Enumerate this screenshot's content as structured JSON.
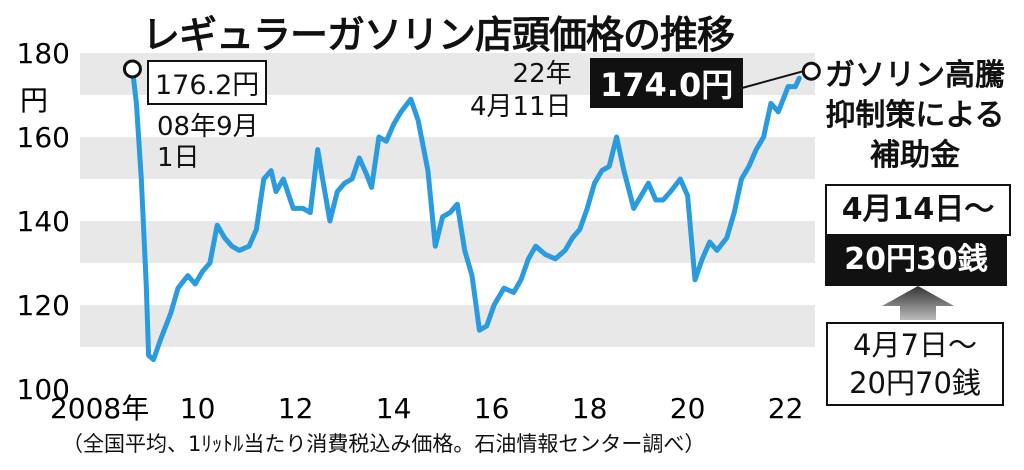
{
  "title": "レギュラーガソリン店頭価格の推移",
  "source": "（全国平均、1ﾘｯﾄﾙ当たり消費税込み価格。石油情報センター調べ）",
  "colors": {
    "line": "#2b9be0",
    "band": "#e8e8e8",
    "text": "#111111"
  },
  "annotations": {
    "start_value": "176.2円",
    "start_date_line1": "08年9月",
    "start_date_line2": "1日",
    "end_date_line1": "22年",
    "end_date_line2": "4月11日",
    "end_value": "174.0円",
    "subsidy_line1": "ガソリン高騰",
    "subsidy_line2": "抑制策による",
    "subsidy_line3": "補助金",
    "from_apr14": "4月14日～",
    "amount_apr14": "20円30銭",
    "from_apr7": "4月7日～",
    "amount_apr7": "20円70銭"
  },
  "chart_data": {
    "type": "line",
    "title": "レギュラーガソリン店頭価格の推移",
    "ylabel": "円",
    "ylim": [
      100,
      180
    ],
    "xlim": [
      2007.6,
      2022.6
    ],
    "y_ticks": [
      {
        "value": 100,
        "label": "100"
      },
      {
        "value": 120,
        "label": "120"
      },
      {
        "value": 140,
        "label": "140"
      },
      {
        "value": 160,
        "label": "160"
      },
      {
        "value": 180,
        "label": "180"
      }
    ],
    "x_ticks": [
      {
        "value": 2008,
        "label": "2008年"
      },
      {
        "value": 2010,
        "label": "10"
      },
      {
        "value": 2012,
        "label": "12"
      },
      {
        "value": 2014,
        "label": "14"
      },
      {
        "value": 2016,
        "label": "16"
      },
      {
        "value": 2018,
        "label": "18"
      },
      {
        "value": 2020,
        "label": "20"
      },
      {
        "value": 2022,
        "label": "22"
      }
    ],
    "grid": "alternating horizontal bands",
    "series": [
      {
        "points": [
          [
            2008.67,
            176.2
          ],
          [
            2008.75,
            168
          ],
          [
            2008.85,
            150
          ],
          [
            2008.95,
            125
          ],
          [
            2009.0,
            108
          ],
          [
            2009.1,
            107
          ],
          [
            2009.25,
            112
          ],
          [
            2009.45,
            118
          ],
          [
            2009.6,
            124
          ],
          [
            2009.8,
            127
          ],
          [
            2009.95,
            125
          ],
          [
            2010.1,
            128
          ],
          [
            2010.25,
            130
          ],
          [
            2010.4,
            139
          ],
          [
            2010.55,
            136
          ],
          [
            2010.7,
            134
          ],
          [
            2010.85,
            133
          ],
          [
            2011.05,
            134
          ],
          [
            2011.2,
            138
          ],
          [
            2011.35,
            150
          ],
          [
            2011.5,
            152
          ],
          [
            2011.6,
            147
          ],
          [
            2011.75,
            150
          ],
          [
            2011.95,
            143
          ],
          [
            2012.15,
            143
          ],
          [
            2012.3,
            142
          ],
          [
            2012.45,
            157
          ],
          [
            2012.55,
            150
          ],
          [
            2012.7,
            140
          ],
          [
            2012.85,
            147
          ],
          [
            2013.0,
            149
          ],
          [
            2013.15,
            150
          ],
          [
            2013.3,
            155
          ],
          [
            2013.45,
            151
          ],
          [
            2013.55,
            148
          ],
          [
            2013.7,
            160
          ],
          [
            2013.85,
            159
          ],
          [
            2014.0,
            163
          ],
          [
            2014.15,
            166
          ],
          [
            2014.35,
            169
          ],
          [
            2014.5,
            164
          ],
          [
            2014.7,
            152
          ],
          [
            2014.85,
            134
          ],
          [
            2015.0,
            141
          ],
          [
            2015.15,
            142
          ],
          [
            2015.3,
            144
          ],
          [
            2015.45,
            133
          ],
          [
            2015.6,
            127
          ],
          [
            2015.75,
            114
          ],
          [
            2015.9,
            115
          ],
          [
            2016.05,
            120
          ],
          [
            2016.25,
            124
          ],
          [
            2016.45,
            123
          ],
          [
            2016.6,
            126
          ],
          [
            2016.75,
            131
          ],
          [
            2016.9,
            134
          ],
          [
            2017.1,
            132
          ],
          [
            2017.3,
            131
          ],
          [
            2017.5,
            133
          ],
          [
            2017.65,
            136
          ],
          [
            2017.8,
            138
          ],
          [
            2017.95,
            143
          ],
          [
            2018.1,
            149
          ],
          [
            2018.25,
            152
          ],
          [
            2018.4,
            153
          ],
          [
            2018.55,
            160
          ],
          [
            2018.7,
            152
          ],
          [
            2018.9,
            143
          ],
          [
            2019.05,
            146
          ],
          [
            2019.2,
            149
          ],
          [
            2019.35,
            145
          ],
          [
            2019.5,
            145
          ],
          [
            2019.65,
            147
          ],
          [
            2019.85,
            150
          ],
          [
            2020.0,
            146
          ],
          [
            2020.15,
            126
          ],
          [
            2020.3,
            131
          ],
          [
            2020.45,
            135
          ],
          [
            2020.6,
            133
          ],
          [
            2020.8,
            136
          ],
          [
            2020.95,
            142
          ],
          [
            2021.1,
            150
          ],
          [
            2021.25,
            153
          ],
          [
            2021.4,
            157
          ],
          [
            2021.55,
            160
          ],
          [
            2021.7,
            168
          ],
          [
            2021.85,
            166
          ],
          [
            2022.05,
            172
          ],
          [
            2022.2,
            172
          ],
          [
            2022.28,
            174.0
          ]
        ]
      }
    ]
  }
}
